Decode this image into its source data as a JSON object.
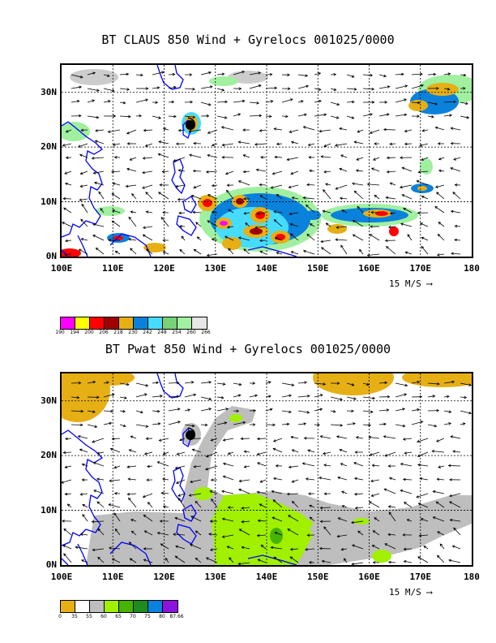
{
  "panels": [
    {
      "title": "BT CLAUS 850 Wind + Gyrelocs 001025/0000",
      "lat_labels": [
        "30N",
        "20N",
        "10N",
        "0N"
      ],
      "lon_labels": [
        "100E",
        "110E",
        "120E",
        "130E",
        "140E",
        "150E",
        "160E",
        "170E",
        "180"
      ],
      "scale_label": "15 M/S",
      "legend": {
        "labels": [
          "190",
          "194",
          "200",
          "206",
          "218",
          "230",
          "242",
          "248",
          "254",
          "260",
          "266"
        ],
        "colors": [
          "#ff00ff",
          "#ffff00",
          "#ff0000",
          "#a00000",
          "#e6af14",
          "#0a82dc",
          "#46dcff",
          "#78d278",
          "#a0f0a0",
          "#e6e6e6"
        ]
      }
    },
    {
      "title": "BT Pwat 850 Wind + Gyrelocs 001025/0000",
      "lat_labels": [
        "30N",
        "20N",
        "10N",
        "0N"
      ],
      "lon_labels": [
        "100E",
        "110E",
        "120E",
        "130E",
        "140E",
        "150E",
        "160E",
        "170E",
        "180"
      ],
      "scale_label": "15 M/S",
      "legend": {
        "labels": [
          "0",
          "35",
          "55",
          "60",
          "65",
          "70",
          "75",
          "80",
          "87.66"
        ],
        "colors": [
          "#e6af14",
          "#ffffff",
          "#bebebe",
          "#a0f000",
          "#46b400",
          "#1e8c1e",
          "#0a82dc",
          "#8c14dc"
        ]
      }
    }
  ]
}
